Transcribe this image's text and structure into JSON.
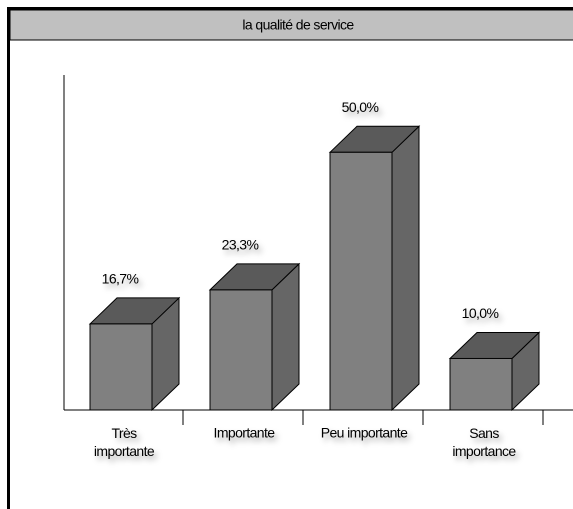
{
  "chart_data": {
    "type": "bar3d",
    "title": "la qualité de service",
    "categories": [
      "Très importante",
      "Importante",
      "Peu importante",
      "Sans importance"
    ],
    "values": [
      16.7,
      23.3,
      50.0,
      10.0
    ],
    "value_labels": [
      "16,7%",
      "23,3%",
      "50,0%",
      "10,0%"
    ],
    "color": "#808080",
    "ylim": [
      0,
      65
    ]
  }
}
